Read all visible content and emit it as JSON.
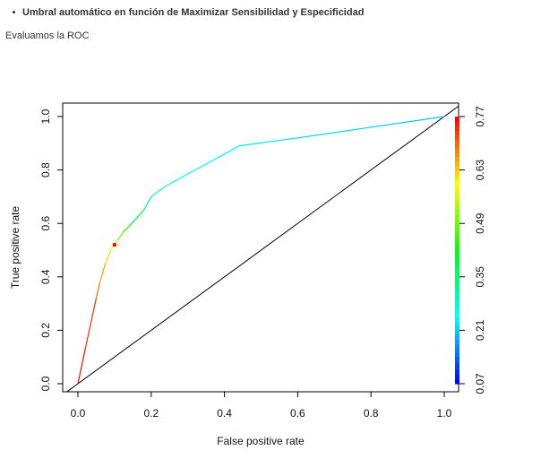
{
  "heading": {
    "bullet_text": "Umbral automático en función de Maximizar Sensibilidad y Especificidad",
    "subtext": "Evaluamos la ROC"
  },
  "chart_data": {
    "type": "line",
    "title": "",
    "xlabel": "False positive rate",
    "ylabel": "True positive rate",
    "xlim": [
      0,
      1
    ],
    "ylim": [
      0,
      1
    ],
    "xticks": [
      "0.0",
      "0.2",
      "0.4",
      "0.6",
      "0.8",
      "1.0"
    ],
    "yticks": [
      "0.0",
      "0.2",
      "0.4",
      "0.6",
      "0.8",
      "1.0"
    ],
    "grid": false,
    "series": [
      {
        "x": [
          0.0,
          0.02,
          0.05,
          0.06,
          0.075,
          0.09,
          0.1,
          0.11,
          0.125,
          0.14,
          0.18,
          0.2,
          0.24,
          0.44,
          0.6,
          0.8,
          1.0
        ],
        "y": [
          0.0,
          0.13,
          0.32,
          0.38,
          0.45,
          0.5,
          0.52,
          0.54,
          0.57,
          0.59,
          0.65,
          0.7,
          0.74,
          0.89,
          0.92,
          0.96,
          1.0
        ],
        "cutoff": [
          0.77,
          0.76,
          0.72,
          0.68,
          0.64,
          0.6,
          0.57,
          0.53,
          0.46,
          0.4,
          0.34,
          0.3,
          0.25,
          0.23,
          0.22,
          0.21,
          0.2
        ]
      }
    ],
    "diagonal": {
      "x": [
        0,
        1
      ],
      "y": [
        0,
        1
      ]
    },
    "optimal_point": {
      "x": 0.1,
      "y": 0.52
    },
    "colorbar": {
      "ticks": [
        "0.07",
        "0.21",
        "0.35",
        "0.49",
        "0.63",
        "0.77"
      ],
      "min": 0.07,
      "max": 0.77
    },
    "colors": {
      "diagonal": "#000000",
      "optimal_point": "#ff0000"
    }
  }
}
